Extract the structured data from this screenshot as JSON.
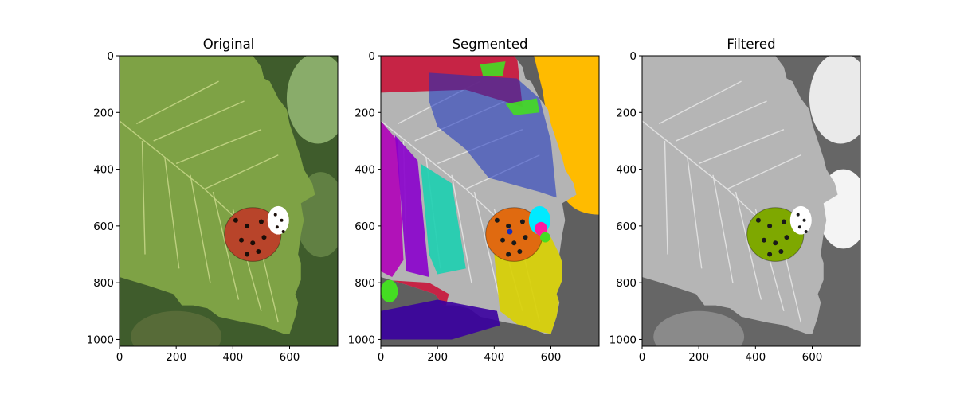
{
  "chart_data": [
    {
      "type": "image",
      "title": "Original",
      "xlim": [
        0,
        770
      ],
      "ylim": [
        1024,
        0
      ],
      "xticks": [
        0,
        200,
        400,
        600
      ],
      "yticks": [
        0,
        200,
        400,
        600,
        800,
        1000
      ],
      "colors": {
        "background": "#3f5c2c",
        "leaf": "#7ea245",
        "leaf_vein": "#c8d88a",
        "ladybug": "#b8442a",
        "spots": "#1a0d08",
        "head_white": "#ffffff"
      }
    },
    {
      "type": "image",
      "title": "Segmented",
      "xlim": [
        0,
        770
      ],
      "ylim": [
        1024,
        0
      ],
      "xticks": [
        0,
        200,
        400,
        600
      ],
      "yticks": [
        0,
        200,
        400,
        600,
        800,
        1000
      ],
      "colors": {
        "background": "#5f5f5f",
        "leaf": "#b4b4b4",
        "red": "#c81438",
        "blue": "#1530c0",
        "orange": "#ffbb00",
        "magenta": "#b000b8",
        "purple": "#8a00cc",
        "teal": "#1ccfb0",
        "yellow": "#d8d000",
        "ladybug": "#e06a10",
        "cyan": "#00eaff",
        "pink": "#ff1aa0",
        "green": "#44dd22",
        "dark_purple": "#3a00a0"
      }
    },
    {
      "type": "image",
      "title": "Filtered",
      "xlim": [
        0,
        770
      ],
      "ylim": [
        1024,
        0
      ],
      "xticks": [
        0,
        200,
        400,
        600
      ],
      "yticks": [
        0,
        200,
        400,
        600,
        800,
        1000
      ],
      "colors": {
        "background": "#666666",
        "leaf": "#b5b5b5",
        "ladybug": "#7ea800",
        "spots": "#1a1a1a",
        "head_white": "#ffffff"
      }
    }
  ]
}
